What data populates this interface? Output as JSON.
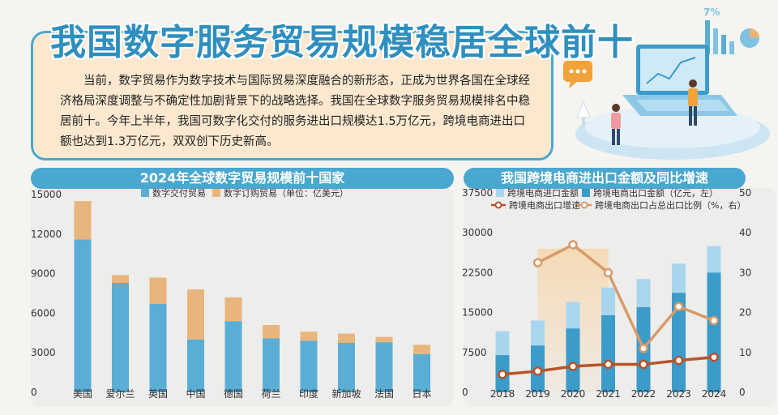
{
  "title": "我国数字服务贸易规模稳居全球前十",
  "intro": "当前，数字贸易作为数字技术与国际贸易深度融合的新形态，正成为世界各国在全球经济格局深度调整与不确定性加剧背景下的战略选择。我国在全球数字服务贸易规模排名中稳居前十。今年上半年，我国可数字化交付的服务进出口规模达1.5万亿元，跨境电商进出口额也达到1.3万亿元，双双创下历史新高。",
  "colors": {
    "brand_blue": "#4aa7cf",
    "digital_delivery": "#5aaed6",
    "digital_ordered": "#e8b57c",
    "import": "#a9d6ef",
    "export": "#3b9bc9",
    "growth_line": "#b8532a",
    "share_line": "#d79b6a"
  },
  "icons": [
    "chat-bubble-icon",
    "laptop-icon",
    "person-icon",
    "pie-chart-icon",
    "bar-chart-icon"
  ],
  "chart_data": [
    {
      "type": "bar",
      "stacked": true,
      "title": "2024年全球数字贸易规模前十国家",
      "legend_unit": "（单位：亿美元）",
      "categories": [
        "美国",
        "爱尔兰",
        "英国",
        "中国",
        "德国",
        "荷兰",
        "印度",
        "新加坡",
        "法国",
        "日本"
      ],
      "series": [
        {
          "name": "数字交付贸易",
          "values": [
            11600,
            8300,
            6700,
            4000,
            5400,
            4100,
            3900,
            3750,
            3800,
            2900
          ]
        },
        {
          "name": "数字订购贸易",
          "values": [
            2900,
            600,
            2000,
            3800,
            1800,
            1000,
            700,
            700,
            400,
            700
          ]
        }
      ],
      "yticks": [
        "0",
        "3000",
        "6000",
        "9000",
        "12000",
        "15000"
      ],
      "ylim": [
        0,
        15000
      ],
      "grid": false,
      "legend_position": "top-center"
    },
    {
      "type": "bar",
      "title": "我国跨境电商进出口金额及同比增速",
      "categories": [
        "2018",
        "2019",
        "2020",
        "2021",
        "2022",
        "2023",
        "2024"
      ],
      "series": [
        {
          "name": "跨境电商进口金额",
          "kind": "bar",
          "axis": "left",
          "values": [
            11500,
            13500,
            17000,
            19700,
            21300,
            24200,
            27500
          ]
        },
        {
          "name": "跨境电商出口金额（亿元，左）",
          "kind": "bar",
          "axis": "left",
          "values": [
            7000,
            8800,
            12000,
            14500,
            16000,
            18700,
            22500
          ]
        },
        {
          "name": "跨境电商出口增速",
          "kind": "line",
          "axis": "right",
          "values": [
            4.5,
            5.3,
            6.5,
            7.0,
            7.0,
            8.0,
            8.8
          ]
        },
        {
          "name": "跨境电商出口占总出口比例（%，右）",
          "kind": "line",
          "axis": "right",
          "values": [
            null,
            32.5,
            37,
            30,
            11,
            21.5,
            18
          ]
        }
      ],
      "yticks_left": [
        "0",
        "7500",
        "15000",
        "22500",
        "30000",
        "37500"
      ],
      "yticks_right": [
        "0",
        "10",
        "20",
        "30",
        "40",
        "50"
      ],
      "ylim_left": [
        0,
        37500
      ],
      "ylim_right": [
        0,
        50
      ],
      "grid": false,
      "legend_position": "top"
    }
  ]
}
